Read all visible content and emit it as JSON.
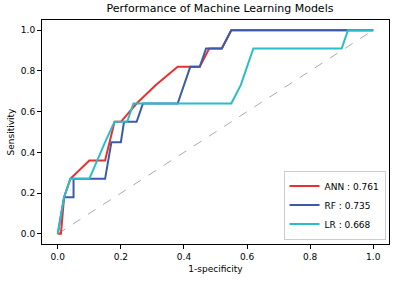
{
  "chart_data": {
    "type": "line",
    "title": "Performance of Machine Learning Models",
    "x_label": "1-specificity",
    "y_label": "Sensitivity",
    "xlim": [
      -0.05,
      1.05
    ],
    "ylim": [
      -0.05,
      1.05
    ],
    "xticks": [
      {
        "value": 0,
        "label": "0.0"
      },
      {
        "value": 0.2,
        "label": "0.2"
      },
      {
        "value": 0.4,
        "label": "0.4"
      },
      {
        "value": 0.6,
        "label": "0.6"
      },
      {
        "value": 0.8,
        "label": "0.8"
      },
      {
        "value": 1,
        "label": "1.0"
      }
    ],
    "yticks": [
      {
        "value": 0,
        "label": "0.0"
      },
      {
        "value": 0.2,
        "label": "0.2"
      },
      {
        "value": 0.4,
        "label": "0.4"
      },
      {
        "value": 0.6,
        "label": "0.6"
      },
      {
        "value": 0.8,
        "label": "0.8"
      },
      {
        "value": 1,
        "label": "1.0"
      }
    ],
    "grid": false,
    "legend": "lower right",
    "series": [
      {
        "name": "ANN : 0.761",
        "color": "#e8302f",
        "x": [
          0,
          0.01,
          0.02,
          0.04,
          0.1,
          0.15,
          0.18,
          0.2,
          0.25,
          0.31,
          0.38,
          0.45,
          0.48,
          0.52,
          0.55,
          1.0
        ],
        "values": [
          0,
          0,
          0.18,
          0.27,
          0.36,
          0.36,
          0.55,
          0.55,
          0.64,
          0.73,
          0.82,
          0.82,
          0.91,
          0.91,
          1.0,
          1.0
        ]
      },
      {
        "name": "RF : 0.735",
        "color": "#3b5ba9",
        "x": [
          0,
          0.02,
          0.05,
          0.05,
          0.15,
          0.17,
          0.2,
          0.21,
          0.25,
          0.27,
          0.38,
          0.42,
          0.45,
          0.47,
          0.52,
          0.55,
          1.0
        ],
        "values": [
          0,
          0.18,
          0.18,
          0.27,
          0.27,
          0.45,
          0.45,
          0.55,
          0.55,
          0.64,
          0.64,
          0.82,
          0.82,
          0.91,
          0.91,
          1.0,
          1.0
        ]
      },
      {
        "name": "LR : 0.668",
        "color": "#2bbccb",
        "x": [
          0,
          0.02,
          0.04,
          0.1,
          0.15,
          0.18,
          0.22,
          0.24,
          0.55,
          0.58,
          0.62,
          0.9,
          0.92,
          1.0
        ],
        "values": [
          0,
          0.18,
          0.27,
          0.27,
          0.45,
          0.55,
          0.55,
          0.64,
          0.64,
          0.73,
          0.91,
          0.91,
          1.0,
          1.0
        ]
      }
    ]
  }
}
